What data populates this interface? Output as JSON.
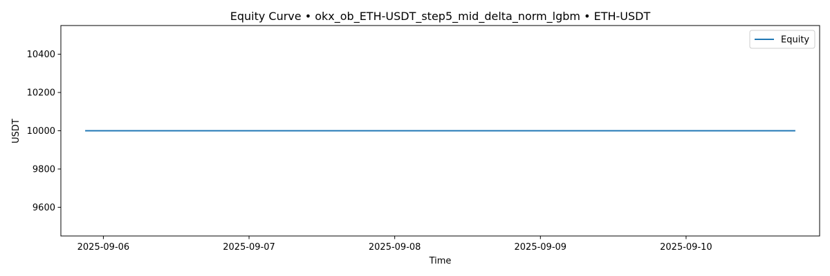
{
  "chart_data": {
    "type": "line",
    "title": "Equity Curve • okx_ob_ETH-USDT_step5_mid_delta_norm_lgbm • ETH-USDT",
    "xlabel": "Time",
    "ylabel": "USDT",
    "x_ticks": [
      "2025-09-06",
      "2025-09-07",
      "2025-09-08",
      "2025-09-09",
      "2025-09-10"
    ],
    "y_ticks": [
      9600,
      9800,
      10000,
      10200,
      10400
    ],
    "xlim": [
      "2025-09-05 17:00",
      "2025-09-10 22:00"
    ],
    "ylim": [
      9450,
      10550
    ],
    "grid": false,
    "legend_position": "top-right",
    "series": [
      {
        "name": "Equity",
        "color": "#1f77b4",
        "x": [
          "2025-09-05 21:00",
          "2025-09-10 18:00"
        ],
        "values": [
          10000,
          10000
        ]
      }
    ]
  }
}
